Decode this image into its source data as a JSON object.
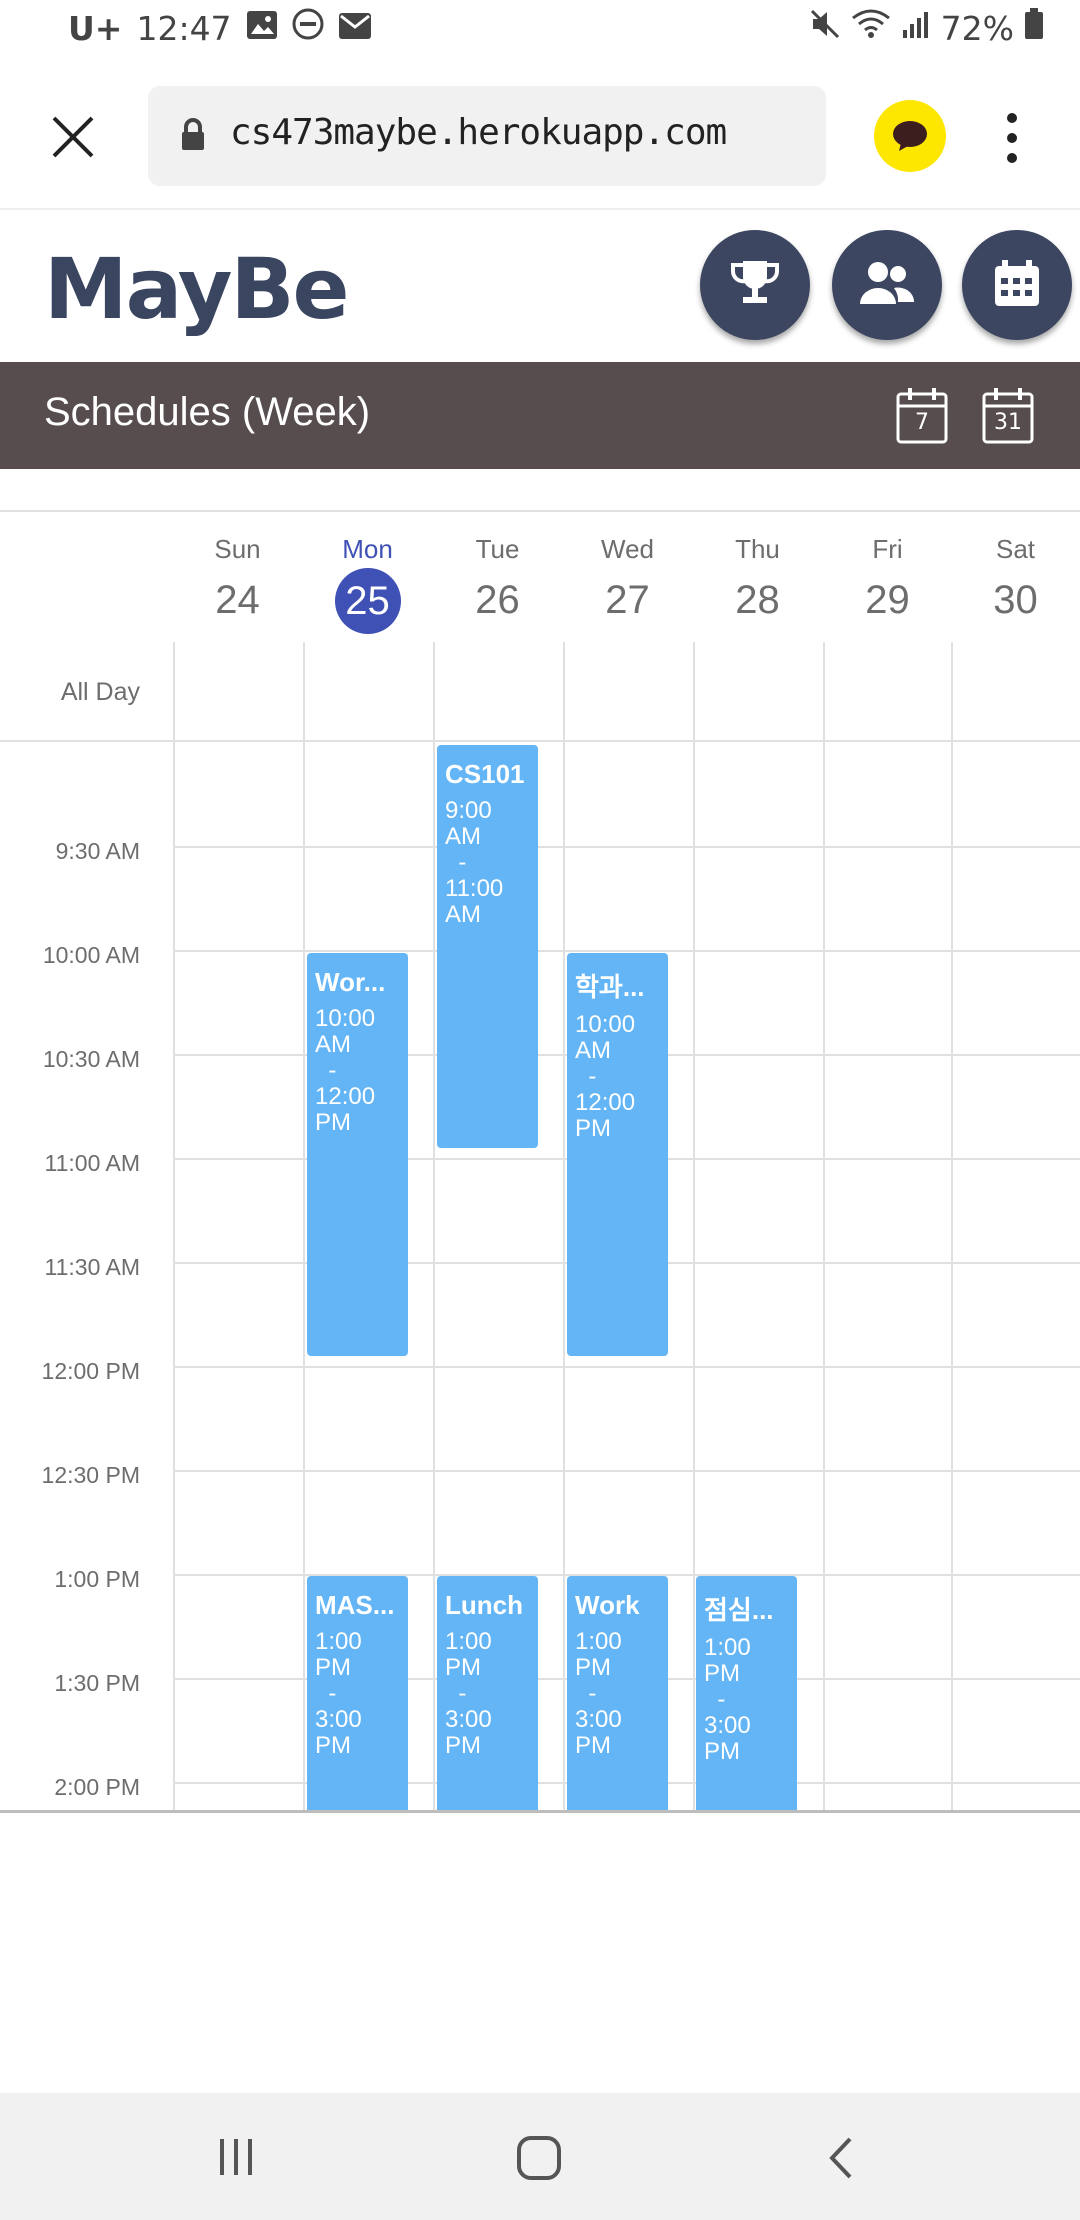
{
  "status": {
    "carrier": "U+",
    "time": "12:47",
    "battery": "72%"
  },
  "browser": {
    "url": "cs473maybe.herokuapp.com"
  },
  "app": {
    "logo": "MayBe"
  },
  "section": {
    "title": "Schedules (Week)",
    "week_icon_label": "7",
    "month_icon_label": "31"
  },
  "calendar": {
    "all_day_label": "All Day",
    "days": [
      {
        "name": "Sun",
        "num": "24"
      },
      {
        "name": "Mon",
        "num": "25",
        "today": true
      },
      {
        "name": "Tue",
        "num": "26"
      },
      {
        "name": "Wed",
        "num": "27"
      },
      {
        "name": "Thu",
        "num": "28"
      },
      {
        "name": "Fri",
        "num": "29"
      },
      {
        "name": "Sat",
        "num": "30"
      }
    ],
    "times": [
      "9:30 AM",
      "10:00 AM",
      "10:30 AM",
      "11:00 AM",
      "11:30 AM",
      "12:00 PM",
      "12:30 PM",
      "1:00 PM",
      "1:30 PM",
      "2:00 PM"
    ],
    "events": [
      {
        "title": "CS101",
        "start": "9:00",
        "start_ampm": "AM",
        "end": "11:00",
        "end_ampm": "AM",
        "day": "Tue"
      },
      {
        "title": "Wor...",
        "start": "10:00",
        "start_ampm": "AM",
        "end": "12:00",
        "end_ampm": "PM",
        "day": "Mon"
      },
      {
        "title": "학과...",
        "start": "10:00",
        "start_ampm": "AM",
        "end": "12:00",
        "end_ampm": "PM",
        "day": "Wed"
      },
      {
        "title": "MAS...",
        "start": "1:00",
        "start_ampm": "PM",
        "end": "3:00",
        "end_ampm": "PM",
        "day": "Mon"
      },
      {
        "title": "Lunch",
        "start": "1:00",
        "start_ampm": "PM",
        "end": "3:00",
        "end_ampm": "PM",
        "day": "Tue"
      },
      {
        "title": "Work",
        "start": "1:00",
        "start_ampm": "PM",
        "end": "3:00",
        "end_ampm": "PM",
        "day": "Wed"
      },
      {
        "title": "점심...",
        "start": "1:00",
        "start_ampm": "PM",
        "end": "3:00",
        "end_ampm": "PM",
        "day": "Thu"
      }
    ]
  },
  "colors": {
    "accent": "#3f51b5",
    "event": "#64b5f6",
    "header_bar": "#574d4e",
    "round_button": "#3c4660"
  }
}
